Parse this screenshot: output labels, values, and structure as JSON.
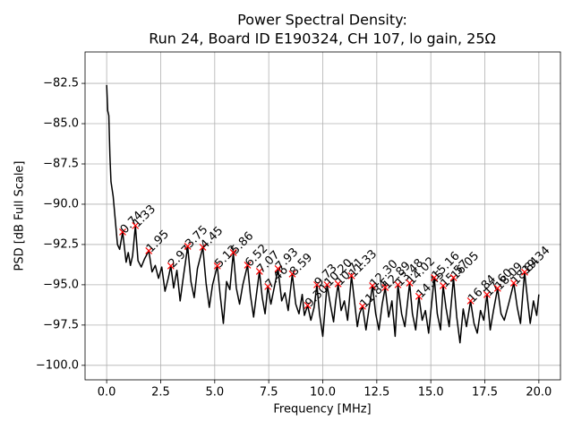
{
  "chart_data": {
    "type": "line",
    "title": [
      "Power Spectral Density:",
      "Run 24, Board ID E190324, CH 107, lo gain, 25Ω"
    ],
    "xlabel": "Frequency [MHz]",
    "ylabel": "PSD [dB Full Scale]",
    "xlim": [
      -1,
      21
    ],
    "ylim": [
      -100.9,
      -80.55
    ],
    "xticks": [
      {
        "value": 0,
        "label": "0.0"
      },
      {
        "value": 2.5,
        "label": "2.5"
      },
      {
        "value": 5,
        "label": "5.0"
      },
      {
        "value": 7.5,
        "label": "7.5"
      },
      {
        "value": 10,
        "label": "10.0"
      },
      {
        "value": 12.5,
        "label": "12.5"
      },
      {
        "value": 15,
        "label": "15.0"
      },
      {
        "value": 17.5,
        "label": "17.5"
      },
      {
        "value": 20,
        "label": "20.0"
      }
    ],
    "yticks": [
      {
        "value": -100,
        "label": "−100.0"
      },
      {
        "value": -97.5,
        "label": "−97.5"
      },
      {
        "value": -95,
        "label": "−95.0"
      },
      {
        "value": -92.5,
        "label": "−92.5"
      },
      {
        "value": -90,
        "label": "−90.0"
      },
      {
        "value": -87.5,
        "label": "−87.5"
      },
      {
        "value": -85,
        "label": "−85.0"
      },
      {
        "value": -82.5,
        "label": "−82.5"
      }
    ],
    "grid": true,
    "series": [
      {
        "type": "line",
        "color": "#000000",
        "x": [
          0,
          0.05,
          0.1,
          0.15,
          0.2,
          0.3,
          0.4,
          0.5,
          0.6,
          0.74,
          0.9,
          1.0,
          1.1,
          1.2,
          1.33,
          1.45,
          1.6,
          1.75,
          1.95,
          2.1,
          2.25,
          2.4,
          2.55,
          2.7,
          2.85,
          2.97,
          3.1,
          3.25,
          3.4,
          3.55,
          3.75,
          3.9,
          4.05,
          4.2,
          4.45,
          4.6,
          4.75,
          4.9,
          5.12,
          5.25,
          5.4,
          5.55,
          5.7,
          5.86,
          6.0,
          6.15,
          6.3,
          6.52,
          6.65,
          6.8,
          6.95,
          7.07,
          7.2,
          7.33,
          7.46,
          7.6,
          7.75,
          7.93,
          8.1,
          8.25,
          8.4,
          8.59,
          8.75,
          8.9,
          9.05,
          9.15,
          9.3,
          9.45,
          9.6,
          9.73,
          9.85,
          10.0,
          10.1,
          10.2,
          10.35,
          10.5,
          10.6,
          10.71,
          10.85,
          11.0,
          11.15,
          11.33,
          11.5,
          11.6,
          11.7,
          11.84,
          12.0,
          12.15,
          12.3,
          12.45,
          12.6,
          12.75,
          12.89,
          13.05,
          13.2,
          13.35,
          13.48,
          13.65,
          13.8,
          14.02,
          14.15,
          14.3,
          14.45,
          14.6,
          14.75,
          14.9,
          15.02,
          15.16,
          15.3,
          15.45,
          15.57,
          15.7,
          15.85,
          16.05,
          16.2,
          16.35,
          16.5,
          16.65,
          16.84,
          17.0,
          17.15,
          17.3,
          17.45,
          17.6,
          17.75,
          17.9,
          18.09,
          18.25,
          18.4,
          18.6,
          18.84,
          19.0,
          19.15,
          19.34,
          19.5,
          19.6,
          19.75,
          19.9,
          20.0
        ],
        "values": [
          -82.6,
          -84.2,
          -84.5,
          -87,
          -88.6,
          -89.5,
          -91,
          -92.5,
          -92.8,
          -91.72,
          -93.6,
          -93,
          -93.8,
          -93.2,
          -91.33,
          -93.5,
          -93.9,
          -93.4,
          -92.89,
          -94.2,
          -93.8,
          -94.6,
          -93.9,
          -95.4,
          -94.6,
          -93.83,
          -95.2,
          -94.1,
          -96.0,
          -94.5,
          -92.61,
          -94.8,
          -95.8,
          -94.0,
          -92.67,
          -94.9,
          -96.4,
          -95.0,
          -93.83,
          -95.6,
          -97.4,
          -94.8,
          -95.3,
          -93.0,
          -95.2,
          -96.2,
          -95.0,
          -93.78,
          -95.6,
          -97.0,
          -95.4,
          -94.17,
          -95.8,
          -96.8,
          -95.11,
          -96.2,
          -95.2,
          -94.0,
          -96.0,
          -95.5,
          -96.6,
          -94.33,
          -96.2,
          -96.8,
          -95.6,
          -96.9,
          -96.28,
          -97.2,
          -96.4,
          -95.0,
          -96.8,
          -98.2,
          -96.6,
          -95.0,
          -96.2,
          -97.3,
          -96.0,
          -94.94,
          -96.6,
          -96.0,
          -97.2,
          -94.44,
          -96.4,
          -97.6,
          -96.8,
          -96.33,
          -97.8,
          -96.4,
          -95.06,
          -96.8,
          -97.8,
          -96.2,
          -95.17,
          -97.0,
          -96.0,
          -98.2,
          -95.0,
          -96.8,
          -97.6,
          -94.89,
          -96.8,
          -97.8,
          -95.72,
          -97.2,
          -96.6,
          -98.0,
          -96.4,
          -94.56,
          -96.8,
          -97.8,
          -95.06,
          -96.4,
          -97.6,
          -94.56,
          -97.0,
          -98.6,
          -96.5,
          -97.6,
          -96.0,
          -97.4,
          -98.0,
          -96.6,
          -97.2,
          -95.61,
          -97.8,
          -96.6,
          -95.22,
          -96.8,
          -97.2,
          -96.2,
          -94.89,
          -96.4,
          -97.4,
          -94.22,
          -96.2,
          -97.4,
          -96.0,
          -96.9,
          -95.6
        ]
      },
      {
        "type": "scatter",
        "marker": "x",
        "color": "#ff0000",
        "x": [
          0.74,
          1.33,
          1.95,
          2.97,
          3.75,
          4.45,
          5.12,
          5.86,
          6.52,
          7.07,
          7.46,
          7.93,
          8.59,
          9.3,
          9.73,
          10.2,
          10.71,
          11.33,
          11.84,
          12.3,
          12.89,
          13.48,
          14.02,
          14.45,
          15.16,
          15.57,
          16.05,
          16.84,
          17.6,
          18.09,
          18.84,
          19.34
        ],
        "values": [
          -91.72,
          -91.33,
          -92.89,
          -93.83,
          -92.61,
          -92.67,
          -93.83,
          -93.0,
          -93.78,
          -94.17,
          -95.11,
          -94.0,
          -94.33,
          -96.28,
          -95.0,
          -95.0,
          -94.94,
          -94.44,
          -96.33,
          -95.06,
          -95.17,
          -95.0,
          -94.89,
          -95.72,
          -94.56,
          -95.06,
          -94.56,
          -96.0,
          -95.61,
          -95.22,
          -94.89,
          -94.22
        ],
        "value_labels": [
          "0.74",
          "1.33",
          "1.95",
          "2.97",
          "3.75",
          "4.45",
          "5.12",
          "5.86",
          "6.52",
          "7.07",
          "7.46",
          "7.93",
          "8.59",
          "9.30",
          "9.73",
          "10.20",
          "10.71",
          "11.33",
          "11.84",
          "12.30",
          "12.89",
          "13.48",
          "14.02",
          "14.45",
          "15.16",
          "15.57",
          "16.05",
          "16.84",
          "17.60",
          "18.09",
          "18.84",
          "19.34"
        ]
      }
    ]
  }
}
